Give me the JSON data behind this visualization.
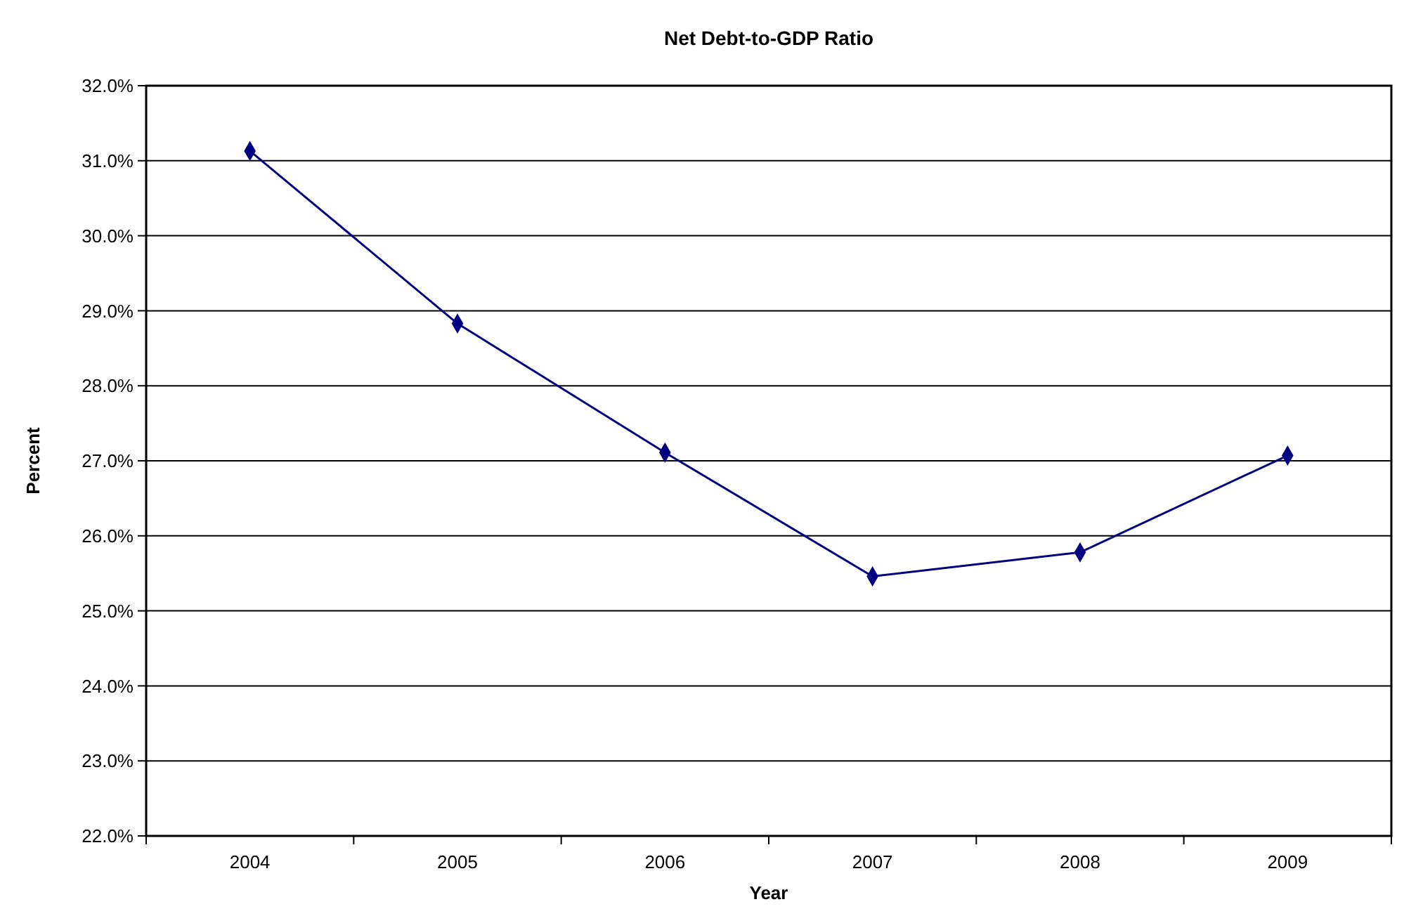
{
  "chart_data": {
    "type": "line",
    "title": "Net Debt-to-GDP Ratio",
    "xlabel": "Year",
    "ylabel": "Percent",
    "categories": [
      "2004",
      "2005",
      "2006",
      "2007",
      "2008",
      "2009"
    ],
    "series": [
      {
        "color": "#000080",
        "values": [
          31.13,
          28.83,
          27.11,
          25.46,
          25.78,
          27.07
        ]
      }
    ],
    "ylim": [
      22,
      32
    ],
    "yticks": [
      {
        "value": 22,
        "label": "22.0%"
      },
      {
        "value": 23,
        "label": "23.0%"
      },
      {
        "value": 24,
        "label": "24.0%"
      },
      {
        "value": 25,
        "label": "25.0%"
      },
      {
        "value": 26,
        "label": "26.0%"
      },
      {
        "value": 27,
        "label": "27.0%"
      },
      {
        "value": 28,
        "label": "28.0%"
      },
      {
        "value": 29,
        "label": "29.0%"
      },
      {
        "value": 30,
        "label": "30.0%"
      },
      {
        "value": 31,
        "label": "31.0%"
      },
      {
        "value": 32,
        "label": "32.0%"
      }
    ],
    "grid": "y",
    "marker": "diamond",
    "line_style": "solid"
  }
}
